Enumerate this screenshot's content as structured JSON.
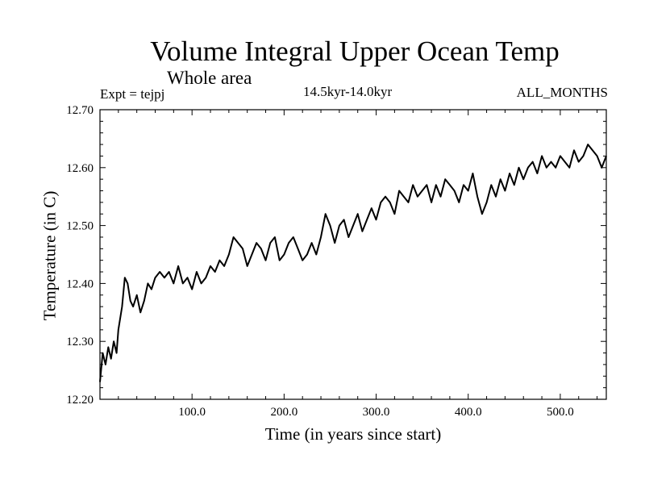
{
  "chart_data": {
    "type": "line",
    "title": "Volume Integral Upper Ocean Temp",
    "subtitle": "Whole area",
    "experiment_label": "Expt = tejpj",
    "period_label": "14.5kyr-14.0kyr",
    "months_label": "ALL_MONTHS",
    "xlabel": "Time (in years since start)",
    "ylabel": "Temperature (in C)",
    "xlim": [
      0,
      550
    ],
    "ylim": [
      12.2,
      12.7
    ],
    "grid": false,
    "legend": "none",
    "x_ticks": [
      100,
      200,
      300,
      400,
      500
    ],
    "x_tick_labels": [
      "100.0",
      "200.0",
      "300.0",
      "400.0",
      "500.0"
    ],
    "y_ticks": [
      12.2,
      12.3,
      12.4,
      12.5,
      12.6,
      12.7
    ],
    "y_tick_labels": [
      "12.20",
      "12.30",
      "12.40",
      "12.50",
      "12.60",
      "12.70"
    ],
    "series": [
      {
        "name": "Volume Integral Upper Ocean Temp",
        "x": [
          0,
          3,
          6,
          9,
          12,
          15,
          18,
          20,
          24,
          27,
          30,
          33,
          36,
          40,
          44,
          48,
          52,
          56,
          60,
          65,
          70,
          75,
          80,
          85,
          90,
          95,
          100,
          105,
          110,
          115,
          120,
          125,
          130,
          135,
          140,
          145,
          150,
          155,
          160,
          165,
          170,
          175,
          180,
          185,
          190,
          195,
          200,
          205,
          210,
          215,
          220,
          225,
          230,
          235,
          240,
          245,
          250,
          255,
          260,
          265,
          270,
          275,
          280,
          285,
          290,
          295,
          300,
          305,
          310,
          315,
          320,
          325,
          330,
          335,
          340,
          345,
          350,
          355,
          360,
          365,
          370,
          375,
          380,
          385,
          390,
          395,
          400,
          405,
          410,
          415,
          420,
          425,
          430,
          435,
          440,
          445,
          450,
          455,
          460,
          465,
          470,
          475,
          480,
          485,
          490,
          495,
          500,
          505,
          510,
          515,
          520,
          525,
          530,
          535,
          540,
          545,
          550
        ],
        "y": [
          12.23,
          12.28,
          12.26,
          12.29,
          12.27,
          12.3,
          12.28,
          12.32,
          12.36,
          12.41,
          12.4,
          12.37,
          12.36,
          12.38,
          12.35,
          12.37,
          12.4,
          12.39,
          12.41,
          12.42,
          12.41,
          12.42,
          12.4,
          12.43,
          12.4,
          12.41,
          12.39,
          12.42,
          12.4,
          12.41,
          12.43,
          12.42,
          12.44,
          12.43,
          12.45,
          12.48,
          12.47,
          12.46,
          12.43,
          12.45,
          12.47,
          12.46,
          12.44,
          12.47,
          12.48,
          12.44,
          12.45,
          12.47,
          12.48,
          12.46,
          12.44,
          12.45,
          12.47,
          12.45,
          12.48,
          12.52,
          12.5,
          12.47,
          12.5,
          12.51,
          12.48,
          12.5,
          12.52,
          12.49,
          12.51,
          12.53,
          12.51,
          12.54,
          12.55,
          12.54,
          12.52,
          12.56,
          12.55,
          12.54,
          12.57,
          12.55,
          12.56,
          12.57,
          12.54,
          12.57,
          12.55,
          12.58,
          12.57,
          12.56,
          12.54,
          12.57,
          12.56,
          12.59,
          12.55,
          12.52,
          12.54,
          12.57,
          12.55,
          12.58,
          12.56,
          12.59,
          12.57,
          12.6,
          12.58,
          12.6,
          12.61,
          12.59,
          12.62,
          12.6,
          12.61,
          12.6,
          12.62,
          12.61,
          12.6,
          12.63,
          12.61,
          12.62,
          12.64,
          12.63,
          12.62,
          12.6,
          12.62
        ]
      }
    ]
  }
}
